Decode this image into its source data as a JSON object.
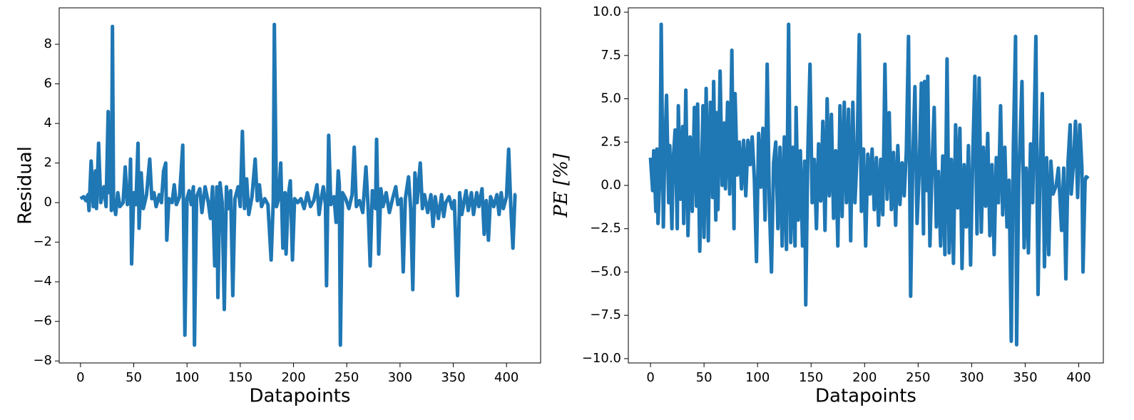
{
  "chart_data": [
    {
      "type": "line",
      "x_label": "Datapoints",
      "y_label": "Residual",
      "xlim": [
        -20,
        432
      ],
      "ylim": [
        -8.1,
        9.84
      ],
      "xticks": [
        0,
        50,
        100,
        150,
        200,
        250,
        300,
        350,
        400
      ],
      "yticks": [
        {
          "value": -8,
          "label": "−8"
        },
        {
          "value": -6,
          "label": "−6"
        },
        {
          "value": -4,
          "label": "−4"
        },
        {
          "value": -2,
          "label": "−2"
        },
        0,
        2,
        4,
        6,
        8
      ],
      "series": [
        {
          "color": "#1f77b4",
          "x": [
            0,
            3,
            5,
            7,
            8,
            10,
            12,
            14,
            15,
            17,
            19,
            22,
            24,
            26,
            27,
            28,
            29,
            30,
            31,
            33,
            35,
            37,
            40,
            42,
            44,
            46,
            47,
            48,
            50,
            52,
            54,
            55,
            57,
            59,
            62,
            65,
            67,
            69,
            71,
            74,
            76,
            78,
            80,
            81,
            83,
            86,
            88,
            90,
            93,
            96,
            98,
            100,
            102,
            104,
            106,
            107,
            109,
            112,
            114,
            117,
            120,
            122,
            124,
            126,
            128,
            129,
            131,
            133,
            135,
            137,
            139,
            141,
            143,
            145,
            148,
            150,
            152,
            154,
            156,
            158,
            161,
            164,
            166,
            168,
            170,
            173,
            176,
            179,
            181,
            182,
            184,
            186,
            188,
            190,
            192,
            193,
            195,
            197,
            199,
            201,
            204,
            207,
            210,
            213,
            216,
            219,
            222,
            224,
            226,
            228,
            230,
            231,
            233,
            235,
            238,
            240,
            242,
            243,
            244,
            246,
            249,
            252,
            255,
            257,
            259,
            262,
            265,
            268,
            270,
            272,
            274,
            277,
            278,
            280,
            282,
            284,
            287,
            290,
            293,
            296,
            298,
            301,
            303,
            305,
            308,
            310,
            312,
            314,
            316,
            319,
            321,
            323,
            326,
            329,
            331,
            333,
            336,
            339,
            341,
            343,
            346,
            349,
            351,
            354,
            356,
            358,
            362,
            364,
            367,
            369,
            372,
            374,
            377,
            379,
            381,
            383,
            385,
            388,
            391,
            393,
            395,
            397,
            400,
            402,
            404,
            406,
            408,
            409
          ],
          "values": [
            0.2,
            0.3,
            0.1,
            0.4,
            -0.4,
            2.1,
            -0.2,
            1.6,
            -0.3,
            3.0,
            0.0,
            0.8,
            -0.2,
            4.6,
            0.5,
            3.0,
            -0.4,
            8.9,
            0.2,
            -0.6,
            0.5,
            -0.2,
            0.0,
            1.8,
            -0.1,
            0.4,
            2.2,
            -3.1,
            0.5,
            -0.1,
            3.0,
            -1.3,
            1.5,
            -0.3,
            0.4,
            2.2,
            0.2,
            0.5,
            -0.2,
            0.4,
            0.0,
            1.6,
            2.0,
            -1.9,
            0.2,
            0.0,
            0.9,
            -0.1,
            0.3,
            2.9,
            -6.7,
            0.2,
            0.6,
            -0.1,
            0.8,
            -7.2,
            0.3,
            0.7,
            -0.5,
            0.8,
            0.0,
            -0.8,
            0.8,
            -3.2,
            0.8,
            -4.8,
            1.0,
            0.0,
            -5.4,
            0.8,
            -0.3,
            0.6,
            -4.7,
            0.2,
            0.8,
            -0.2,
            3.6,
            -0.3,
            1.2,
            -0.6,
            0.3,
            2.2,
            0.1,
            0.9,
            -0.2,
            0.2,
            -0.1,
            -2.9,
            0.1,
            9.0,
            -0.2,
            0.2,
            2.0,
            -2.3,
            0.5,
            -2.6,
            0.3,
            1.1,
            -2.9,
            0.2,
            0.0,
            0.2,
            -0.3,
            0.5,
            -0.2,
            0.1,
            0.9,
            -0.6,
            0.2,
            0.8,
            -0.1,
            -4.2,
            3.4,
            -0.1,
            0.3,
            -1.0,
            1.6,
            0.9,
            -7.2,
            0.5,
            0.2,
            -0.3,
            0.4,
            2.8,
            -0.2,
            0.1,
            -0.5,
            1.8,
            -0.2,
            -3.2,
            0.6,
            -0.3,
            3.2,
            -2.6,
            0.7,
            -0.2,
            0.5,
            -0.5,
            0.2,
            0.8,
            -0.1,
            0.2,
            -3.5,
            0.2,
            1.3,
            -0.3,
            -4.4,
            1.5,
            0.0,
            2.0,
            -0.3,
            0.4,
            -0.5,
            0.4,
            -1.2,
            0.3,
            -0.8,
            0.4,
            -0.7,
            0.0,
            0.3,
            -0.3,
            0.1,
            -4.7,
            0.5,
            -0.6,
            0.6,
            -0.4,
            0.5,
            -0.6,
            0.5,
            -0.2,
            0.7,
            -1.6,
            0.1,
            -1.9,
            0.3,
            -0.2,
            0.4,
            -0.6,
            0.5,
            -0.3,
            0.3,
            2.7,
            -0.2,
            -2.3,
            0.4,
            0.4
          ]
        }
      ]
    },
    {
      "type": "line",
      "x_label": "Datapoints",
      "y_label": "PE [%]",
      "xlim": [
        -20.7,
        423
      ],
      "ylim": [
        -10.25,
        10.25
      ],
      "xticks": [
        0,
        50,
        100,
        150,
        200,
        250,
        300,
        350,
        400
      ],
      "yticks": [
        {
          "value": -10,
          "label": "−10.0"
        },
        {
          "value": -7.5,
          "label": "−7.5"
        },
        {
          "value": -5,
          "label": "−5.0"
        },
        {
          "value": -2.5,
          "label": "−2.5"
        },
        {
          "value": 0,
          "label": "0.0"
        },
        2.5,
        {
          "value": 5,
          "label": "5.0"
        },
        7.5,
        {
          "value": 10,
          "label": "10.0"
        }
      ],
      "series": [
        {
          "color": "#1f77b4",
          "x": [
            0,
            2,
            3,
            5,
            6,
            7,
            9,
            10,
            12,
            13,
            15,
            17,
            18,
            20,
            21,
            23,
            25,
            26,
            28,
            30,
            31,
            33,
            35,
            37,
            39,
            41,
            43,
            44,
            46,
            48,
            49,
            50,
            52,
            54,
            55,
            56,
            58,
            59,
            61,
            62,
            63,
            65,
            67,
            69,
            70,
            72,
            74,
            76,
            78,
            79,
            81,
            83,
            85,
            87,
            89,
            91,
            93,
            95,
            97,
            99,
            101,
            103,
            105,
            107,
            109,
            111,
            113,
            115,
            117,
            119,
            121,
            123,
            125,
            127,
            129,
            131,
            133,
            135,
            136,
            138,
            140,
            142,
            144,
            145,
            147,
            149,
            151,
            153,
            155,
            157,
            159,
            161,
            163,
            165,
            167,
            169,
            171,
            173,
            175,
            177,
            179,
            181,
            183,
            185,
            187,
            189,
            191,
            193,
            195,
            197,
            199,
            201,
            203,
            205,
            207,
            209,
            211,
            213,
            215,
            217,
            219,
            221,
            223,
            225,
            227,
            229,
            231,
            233,
            235,
            237,
            239,
            241,
            243,
            245,
            247,
            249,
            251,
            253,
            255,
            256,
            258,
            259,
            261,
            263,
            265,
            267,
            269,
            271,
            273,
            275,
            277,
            279,
            281,
            283,
            285,
            287,
            289,
            291,
            293,
            295,
            297,
            299,
            301,
            303,
            305,
            307,
            309,
            311,
            313,
            315,
            317,
            319,
            321,
            323,
            325,
            327,
            329,
            330,
            331,
            333,
            335,
            337,
            339,
            341,
            342,
            344,
            345,
            347,
            349,
            351,
            353,
            355,
            357,
            360,
            361,
            362,
            364,
            366,
            368,
            370,
            372,
            374,
            376,
            379,
            381,
            384,
            386,
            388,
            390,
            392,
            393,
            395,
            397,
            399,
            401,
            403,
            404,
            406,
            407,
            409
          ],
          "values": [
            1.6,
            -0.3,
            2.0,
            -1.5,
            2.1,
            -2.2,
            1.0,
            9.3,
            -2.4,
            1.0,
            5.2,
            -1.0,
            2.3,
            -2.5,
            1.2,
            3.2,
            -2.5,
            4.6,
            -0.8,
            3.4,
            -2.2,
            5.5,
            -2.9,
            2.8,
            -1.5,
            4.5,
            -1.2,
            4.7,
            -3.8,
            1.5,
            4.6,
            -3.0,
            5.6,
            -3.2,
            2.0,
            4.8,
            -0.7,
            6.0,
            -2.0,
            4.2,
            -1.4,
            6.6,
            0.0,
            3.6,
            -0.2,
            4.8,
            -0.5,
            7.8,
            -2.5,
            5.3,
            0.6,
            2.5,
            -0.2,
            2.6,
            -0.6,
            2.6,
            1.2,
            2.8,
            0.4,
            -4.4,
            3.0,
            -0.1,
            3.3,
            -2.0,
            7.0,
            -1.0,
            -5.0,
            1.3,
            2.5,
            -2.5,
            2.2,
            -3.5,
            2.8,
            -3.7,
            9.3,
            -3.3,
            2.2,
            -3.5,
            4.5,
            -2.0,
            2.0,
            -3.5,
            1.4,
            -6.9,
            2.0,
            7.0,
            -1.0,
            1.5,
            -2.5,
            2.4,
            -0.9,
            3.7,
            -2.6,
            5.0,
            -0.6,
            4.1,
            -1.9,
            2.0,
            -3.5,
            4.6,
            -1.8,
            4.8,
            -1.0,
            4.4,
            -3.2,
            4.8,
            -1.0,
            1.9,
            8.7,
            -1.5,
            2.1,
            -3.5,
            1.8,
            -0.5,
            2.1,
            -1.4,
            1.6,
            -2.3,
            1.5,
            -1.7,
            7.0,
            -0.8,
            4.2,
            -1.4,
            1.9,
            -2.3,
            2.3,
            -1.1,
            1.3,
            -0.6,
            2.0,
            8.6,
            -6.4,
            1.4,
            5.7,
            -2.2,
            0.8,
            5.9,
            -2.8,
            6.0,
            -0.3,
            6.3,
            -3.5,
            1.1,
            4.5,
            -2.4,
            0.8,
            -3.5,
            1.7,
            -4.0,
            7.3,
            -3.9,
            1.5,
            -4.5,
            3.5,
            -1.3,
            3.3,
            -4.8,
            1.2,
            -2.4,
            2.3,
            -4.6,
            1.6,
            6.3,
            -2.8,
            6.2,
            -2.7,
            2.2,
            -1.2,
            3.0,
            -2.9,
            1.2,
            -4.0,
            1.6,
            -1.0,
            4.6,
            -1.7,
            1.3,
            2.2,
            -2.4,
            0.3,
            -9.0,
            2.4,
            8.6,
            -9.2,
            0.5,
            2.2,
            6.0,
            -3.6,
            1.0,
            -3.9,
            2.4,
            -1.0,
            8.6,
            0.5,
            -6.3,
            1.2,
            5.3,
            -4.7,
            1.6,
            -4.0,
            1.4,
            -0.5,
            0.0,
            1.0,
            -2.6,
            1.0,
            -5.4,
            1.3,
            3.5,
            -0.5,
            1.2,
            3.7,
            -0.7,
            3.5,
            1.0,
            -5.0,
            0.3,
            0.5,
            0.4
          ]
        }
      ]
    }
  ]
}
